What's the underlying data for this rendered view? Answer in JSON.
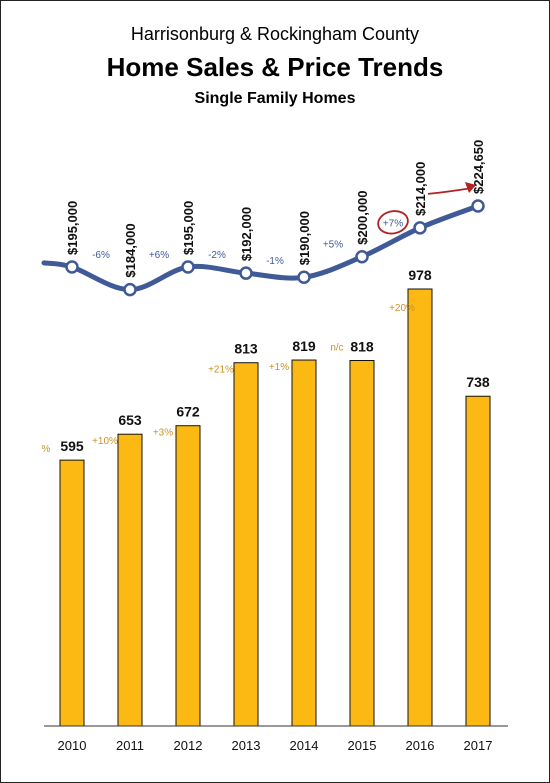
{
  "header": {
    "line1": "Harrisonburg & Rockingham County",
    "title": "Home Sales & Price Trends",
    "subtitle": "Single Family Homes"
  },
  "colors": {
    "bar": "#fdb913",
    "line": "#3f5a96",
    "bar_change": "#c9922a",
    "highlight": "#b22222"
  },
  "chart_data": [
    {
      "type": "bar",
      "categories": [
        "2010",
        "2011",
        "2012",
        "2013",
        "2014",
        "2015",
        "2016",
        "2017"
      ],
      "values": [
        595,
        653,
        672,
        813,
        819,
        818,
        978,
        738
      ],
      "value_labels": [
        "595",
        "653",
        "672",
        "813",
        "819",
        "818",
        "978",
        "738"
      ],
      "change_labels": [
        "%",
        "+10%",
        "+3%",
        "+21%",
        "+1%",
        "n/c",
        "+20%"
      ],
      "ylim": [
        0,
        1100
      ]
    },
    {
      "type": "line",
      "categories": [
        "2010",
        "2011",
        "2012",
        "2013",
        "2014",
        "2015",
        "2016",
        "2017"
      ],
      "values": [
        195000,
        184000,
        195000,
        192000,
        190000,
        200000,
        214000,
        224650
      ],
      "value_labels": [
        "$195,000",
        "$184,000",
        "$195,000",
        "$192,000",
        "$190,000",
        "$200,000",
        "$214,000",
        "$224,650"
      ],
      "change_labels": [
        "-6%",
        "+6%",
        "-2%",
        "-1%",
        "+5%",
        "+7%"
      ],
      "ylim": [
        175000,
        235000
      ]
    }
  ]
}
